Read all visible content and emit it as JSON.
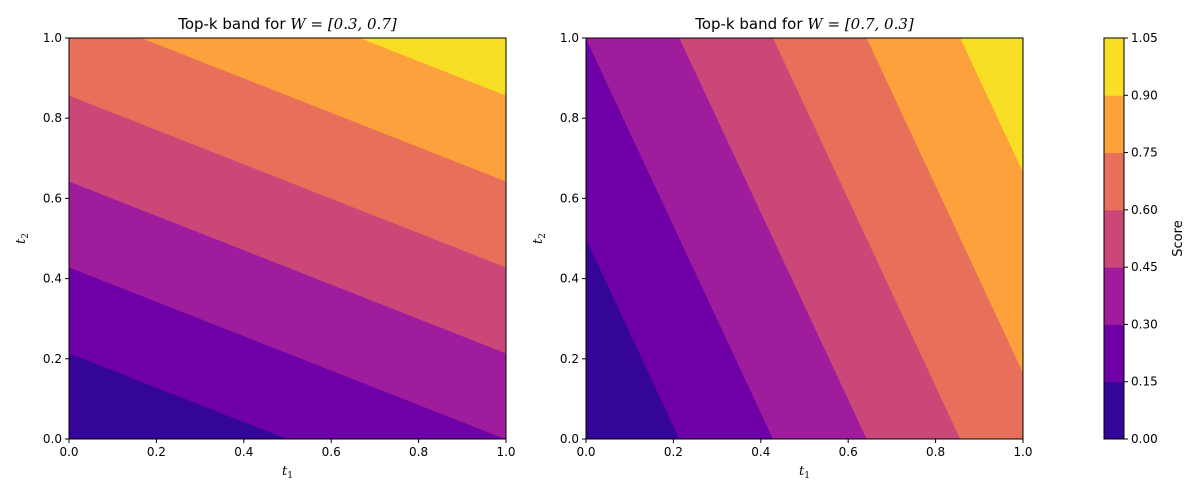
{
  "chart_data": [
    {
      "type": "contour",
      "title_prefix": "Top-k band for ",
      "title_math": "W = [0.3, 0.7]",
      "weights": [
        0.3,
        0.7
      ],
      "xlabel": "t",
      "xlabel_sub": "1",
      "ylabel": "t",
      "ylabel_sub": "2",
      "xlim": [
        0,
        1
      ],
      "ylim": [
        0,
        1
      ],
      "xticks": [
        "0.0",
        "0.2",
        "0.4",
        "0.6",
        "0.8",
        "1.0"
      ],
      "yticks": [
        "0.0",
        "0.2",
        "0.4",
        "0.6",
        "0.8",
        "1.0"
      ],
      "grid": false
    },
    {
      "type": "contour",
      "title_prefix": "Top-k band for ",
      "title_math": "W = [0.7, 0.3]",
      "weights": [
        0.7,
        0.3
      ],
      "xlabel": "t",
      "xlabel_sub": "1",
      "ylabel": "t",
      "ylabel_sub": "2",
      "xlim": [
        0,
        1
      ],
      "ylim": [
        0,
        1
      ],
      "xticks": [
        "0.0",
        "0.2",
        "0.4",
        "0.6",
        "0.8",
        "1.0"
      ],
      "yticks": [
        "0.0",
        "0.2",
        "0.4",
        "0.6",
        "0.8",
        "1.0"
      ],
      "grid": false
    }
  ],
  "colorbar": {
    "label": "Score",
    "levels": [
      0.0,
      0.15,
      0.3,
      0.45,
      0.6,
      0.75,
      0.9,
      1.05
    ],
    "tick_labels": [
      "0.00",
      "0.15",
      "0.30",
      "0.45",
      "0.60",
      "0.75",
      "0.90",
      "1.05"
    ],
    "colors": [
      "#350498",
      "#6f00a8",
      "#9f1d9d",
      "#cb4778",
      "#e8705b",
      "#fca13b",
      "#f9de26"
    ]
  }
}
